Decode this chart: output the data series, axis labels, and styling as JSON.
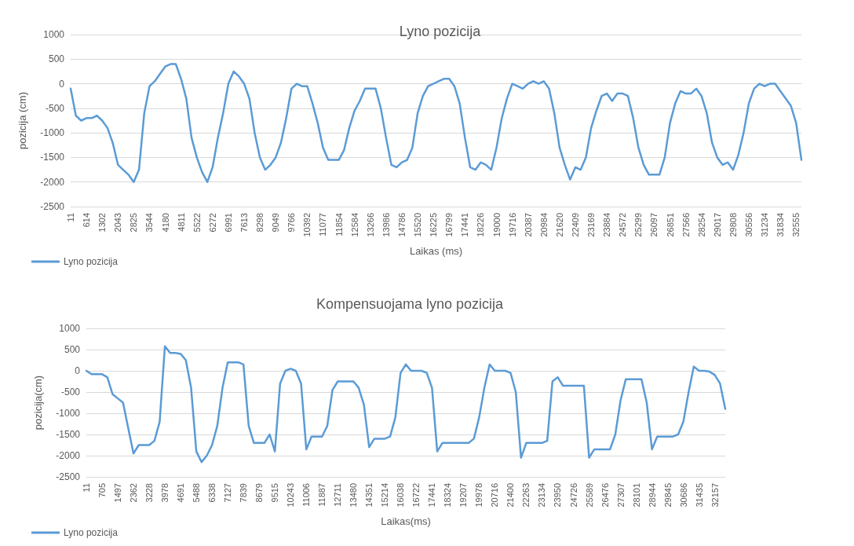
{
  "chart_data": [
    {
      "type": "line",
      "title": "Lyno pozicija",
      "xlabel": "Laikas (ms)",
      "ylabel": "pozicija (cm)",
      "categories": [
        "11",
        null,
        null,
        "614",
        null,
        null,
        "1302",
        null,
        null,
        "2043",
        null,
        null,
        "2825",
        null,
        null,
        "3544",
        null,
        null,
        "4180",
        null,
        null,
        "4811",
        null,
        null,
        "5522",
        null,
        null,
        "6272",
        null,
        null,
        "6991",
        null,
        null,
        "7613",
        null,
        null,
        "8298",
        null,
        null,
        "9049",
        null,
        null,
        "9766",
        null,
        null,
        "10392",
        null,
        null,
        "11077",
        null,
        null,
        "11854",
        null,
        null,
        "12584",
        null,
        null,
        "13266",
        null,
        null,
        "13986",
        null,
        null,
        "14786",
        null,
        null,
        "15520",
        null,
        null,
        "16225",
        null,
        null,
        "16799",
        null,
        null,
        "17441",
        null,
        null,
        "18226",
        null,
        null,
        "19000",
        null,
        null,
        "19716",
        null,
        null,
        "20387",
        null,
        null,
        "20984",
        null,
        null,
        "21620",
        null,
        null,
        "22409",
        null,
        null,
        "23169",
        null,
        null,
        "23884",
        null,
        null,
        "24572",
        null,
        null,
        "25299",
        null,
        null,
        "26097",
        null,
        null,
        "26851",
        null,
        null,
        "27566",
        null,
        null,
        "28254",
        null,
        null,
        "29017",
        null,
        null,
        "29808",
        null,
        null,
        "30556",
        null,
        null,
        "31234",
        null,
        null,
        "31834",
        null,
        null,
        "32555",
        null
      ],
      "series": [
        {
          "name": "Lyno pozicija",
          "color": "#5b9bd5",
          "values": [
            -100,
            -650,
            -750,
            -700,
            -700,
            -650,
            -750,
            -900,
            -1200,
            -1650,
            -1750,
            -1850,
            -2000,
            -1750,
            -600,
            -50,
            50,
            200,
            350,
            400,
            400,
            100,
            -300,
            -1100,
            -1500,
            -1800,
            -2000,
            -1700,
            -1100,
            -600,
            0,
            250,
            150,
            0,
            -300,
            -1000,
            -1500,
            -1750,
            -1650,
            -1500,
            -1200,
            -700,
            -100,
            0,
            -50,
            -50,
            -400,
            -800,
            -1300,
            -1550,
            -1550,
            -1550,
            -1350,
            -900,
            -550,
            -350,
            -100,
            -100,
            -100,
            -500,
            -1100,
            -1650,
            -1700,
            -1600,
            -1550,
            -1300,
            -600,
            -250,
            -50,
            0,
            50,
            100,
            100,
            -50,
            -400,
            -1100,
            -1700,
            -1750,
            -1600,
            -1650,
            -1750,
            -1300,
            -700,
            -300,
            0,
            -50,
            -100,
            0,
            50,
            0,
            50,
            -100,
            -600,
            -1300,
            -1650,
            -1950,
            -1700,
            -1750,
            -1500,
            -900,
            -550,
            -250,
            -200,
            -350,
            -200,
            -200,
            -250,
            -700,
            -1300,
            -1650,
            -1850,
            -1850,
            -1850,
            -1500,
            -800,
            -400,
            -150,
            -200,
            -200,
            -100,
            -250,
            -600,
            -1200,
            -1500,
            -1650,
            -1600,
            -1750,
            -1450,
            -1000,
            -400,
            -100,
            0,
            -50,
            0,
            0,
            -150,
            -300,
            -450,
            -800,
            -1550
          ]
        }
      ],
      "ylim": [
        -2500,
        1000
      ],
      "yticks": [
        -2500,
        -2000,
        -1500,
        -1000,
        -500,
        0,
        500,
        1000
      ],
      "grid": "y",
      "legend": "bottom left",
      "marker": "none",
      "line_style": "solid"
    },
    {
      "type": "line",
      "title": "Kompensuojama lyno pozicija",
      "xlabel": "Laikas(ms)",
      "ylabel": "pozicija(cm)",
      "categories": [
        "11",
        null,
        null,
        "705",
        null,
        null,
        "1497",
        null,
        null,
        "2362",
        null,
        null,
        "3228",
        null,
        null,
        "3978",
        null,
        null,
        "4691",
        null,
        null,
        "5488",
        null,
        null,
        "6338",
        null,
        null,
        "7127",
        null,
        null,
        "7839",
        null,
        null,
        "8679",
        null,
        null,
        "9515",
        null,
        null,
        "10243",
        null,
        null,
        "11006",
        null,
        null,
        "11887",
        null,
        null,
        "12711",
        null,
        null,
        "13480",
        null,
        null,
        "14351",
        null,
        null,
        "15214",
        null,
        null,
        "16038",
        null,
        null,
        "16722",
        null,
        null,
        "17441",
        null,
        null,
        "18324",
        null,
        null,
        "19207",
        null,
        null,
        "19978",
        null,
        null,
        "20716",
        null,
        null,
        "21400",
        null,
        null,
        "22263",
        null,
        null,
        "23134",
        null,
        null,
        "23950",
        null,
        null,
        "24726",
        null,
        null,
        "25589",
        null,
        null,
        "26476",
        null,
        null,
        "27307",
        null,
        null,
        "28101",
        null,
        null,
        "28944",
        null,
        null,
        "29845",
        null,
        null,
        "30686",
        null,
        null,
        "31435",
        null,
        null,
        "32157",
        null,
        null
      ],
      "series": [
        {
          "name": "Lyno pozicija",
          "color": "#5b9bd5",
          "values": [
            0,
            -80,
            -80,
            -80,
            -150,
            -550,
            -650,
            -750,
            -1350,
            -1950,
            -1750,
            -1750,
            -1750,
            -1650,
            -1200,
            580,
            420,
            420,
            400,
            250,
            -400,
            -1900,
            -2150,
            -2000,
            -1750,
            -1300,
            -400,
            200,
            200,
            200,
            150,
            -1300,
            -1700,
            -1700,
            -1700,
            -1500,
            -1900,
            -300,
            0,
            50,
            0,
            -300,
            -1850,
            -1550,
            -1550,
            -1550,
            -1300,
            -450,
            -250,
            -250,
            -250,
            -250,
            -400,
            -800,
            -1800,
            -1600,
            -1600,
            -1600,
            -1550,
            -1100,
            -50,
            150,
            0,
            0,
            0,
            -50,
            -400,
            -1900,
            -1700,
            -1700,
            -1700,
            -1700,
            -1700,
            -1700,
            -1600,
            -1100,
            -400,
            150,
            0,
            0,
            0,
            -50,
            -500,
            -2050,
            -1700,
            -1700,
            -1700,
            -1700,
            -1650,
            -250,
            -150,
            -350,
            -350,
            -350,
            -350,
            -350,
            -2050,
            -1850,
            -1850,
            -1850,
            -1850,
            -1500,
            -700,
            -200,
            -200,
            -200,
            -200,
            -750,
            -1850,
            -1550,
            -1550,
            -1550,
            -1550,
            -1500,
            -1200,
            -500,
            100,
            0,
            0,
            -20,
            -100,
            -300,
            -900
          ]
        }
      ],
      "ylim": [
        -2500,
        1000
      ],
      "yticks": [
        -2500,
        -2000,
        -1500,
        -1000,
        -500,
        0,
        500,
        1000
      ],
      "grid": "y",
      "legend": "bottom left",
      "marker": "none",
      "line_style": "solid"
    }
  ]
}
